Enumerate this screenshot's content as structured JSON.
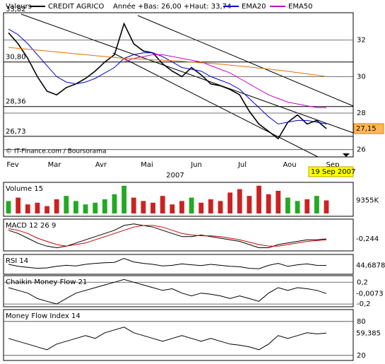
{
  "chart_data": [
    {
      "type": "line",
      "title": "Valeurs",
      "subtitle": "Année +Bas: 26,00 +Haut: 33,74",
      "series": [
        {
          "name": "CREDIT AGRICO",
          "color": "#000000",
          "values": [
            32.4,
            31.8,
            31.0,
            30.0,
            29.2,
            29.0,
            29.4,
            29.6,
            29.9,
            30.3,
            30.8,
            31.2,
            32.9,
            31.8,
            31.4,
            31.3,
            30.7,
            30.3,
            30.0,
            30.5,
            30.1,
            29.6,
            29.5,
            29.3,
            29.0,
            28.1,
            27.4,
            27.0,
            26.6,
            27.5,
            27.9,
            27.4,
            27.6,
            27.15
          ]
        },
        {
          "name": "EMA20",
          "color": "#0000cc",
          "values": [
            32.6,
            32.3,
            31.8,
            31.2,
            30.6,
            30.0,
            29.7,
            29.6,
            29.7,
            29.9,
            30.2,
            30.5,
            31.0,
            31.2,
            31.3,
            31.3,
            31.1,
            30.8,
            30.5,
            30.4,
            30.3,
            30.0,
            29.8,
            29.6,
            29.3,
            28.8,
            28.3,
            27.8,
            27.4,
            27.5,
            27.6,
            27.6,
            27.5,
            27.4
          ]
        },
        {
          "name": "EMA50",
          "color": "#cc00cc",
          "values": [
            null,
            null,
            null,
            null,
            null,
            null,
            null,
            null,
            null,
            null,
            null,
            null,
            30.8,
            31.0,
            31.1,
            31.2,
            31.2,
            31.1,
            31.0,
            30.9,
            30.8,
            30.6,
            30.4,
            30.2,
            29.9,
            29.6,
            29.3,
            29.0,
            28.8,
            28.6,
            28.5,
            28.4,
            28.3,
            28.3
          ]
        },
        {
          "color": "#e07000",
          "values": [
            31.6,
            31.55,
            31.5,
            31.45,
            31.4,
            31.35,
            31.3,
            31.25,
            31.2,
            31.15,
            31.1,
            31.05,
            31.0,
            30.98,
            30.95,
            30.92,
            30.9,
            30.87,
            30.84,
            30.8,
            30.76,
            30.72,
            30.68,
            30.63,
            30.58,
            30.53,
            30.47,
            30.41,
            30.35,
            30.29,
            30.22,
            30.15,
            30.08,
            30.0
          ]
        }
      ],
      "ylim": [
        25.6,
        33.5
      ],
      "yticks": [
        26,
        28,
        30,
        32
      ],
      "levels": [
        {
          "value": 33.82,
          "label": "33,82"
        },
        {
          "value": 30.8,
          "label": "30,80"
        },
        {
          "value": 28.36,
          "label": "28,36"
        },
        {
          "value": 26.73,
          "label": "26,73"
        }
      ],
      "current": {
        "value": 27.15,
        "label": "27,15"
      },
      "months": [
        "Fev",
        "Mar",
        "Avr",
        "Mai",
        "Jun",
        "Jul",
        "Aou",
        "Sep"
      ],
      "year": "2007",
      "date": "19 Sep 2007",
      "source": "© IT-Finance.com / Boursorama"
    },
    {
      "type": "bar",
      "title": "Volume 15",
      "up_color": "#22aa22",
      "down_color": "#cc2222",
      "values": [
        9000,
        11000,
        7000,
        8000,
        6000,
        10000,
        12000,
        9000,
        7000,
        8000,
        10000,
        13000,
        18000,
        11000,
        9000,
        8000,
        12000,
        7000,
        9000,
        11000,
        8000,
        10000,
        9000,
        14000,
        16000,
        12000,
        18000,
        13000,
        15000,
        11000,
        9000,
        10000,
        12000,
        9355
      ],
      "ylim": [
        0,
        20000
      ],
      "current": {
        "value": 9355,
        "label": "9355K"
      }
    },
    {
      "type": "line",
      "title": "MACD 12 26 9",
      "series": [
        {
          "color": "#000000",
          "values": [
            0.3,
            0.1,
            -0.2,
            -0.5,
            -0.7,
            -0.8,
            -0.7,
            -0.5,
            -0.3,
            -0.1,
            0.1,
            0.3,
            0.6,
            0.7,
            0.6,
            0.5,
            0.3,
            0.1,
            -0.1,
            -0.1,
            0.0,
            -0.1,
            -0.2,
            -0.3,
            -0.4,
            -0.6,
            -0.8,
            -0.8,
            -0.6,
            -0.5,
            -0.4,
            -0.3,
            -0.3,
            -0.244
          ]
        },
        {
          "color": "#cc0000",
          "values": [
            0.4,
            0.3,
            0.1,
            -0.2,
            -0.4,
            -0.6,
            -0.7,
            -0.6,
            -0.5,
            -0.3,
            -0.1,
            0.1,
            0.3,
            0.5,
            0.6,
            0.6,
            0.5,
            0.3,
            0.1,
            0.0,
            -0.05,
            -0.05,
            -0.1,
            -0.2,
            -0.3,
            -0.45,
            -0.6,
            -0.7,
            -0.7,
            -0.6,
            -0.5,
            -0.4,
            -0.35,
            -0.3
          ]
        }
      ],
      "ylim": [
        -1.0,
        1.0
      ],
      "current": {
        "value": -0.244,
        "label": "-0,244"
      }
    },
    {
      "type": "line",
      "title": "RSI 14",
      "series": [
        {
          "color": "#000000",
          "values": [
            50,
            40,
            35,
            30,
            32,
            40,
            45,
            42,
            50,
            55,
            58,
            60,
            80,
            62,
            55,
            50,
            42,
            45,
            52,
            48,
            44,
            50,
            45,
            40,
            38,
            30,
            28,
            45,
            55,
            40,
            48,
            52,
            45,
            44.6878
          ]
        }
      ],
      "ylim": [
        0,
        100
      ],
      "current": {
        "value": 44.6878,
        "label": "44,6878"
      }
    },
    {
      "type": "line",
      "title": "Chaikin Money Flow 21",
      "series": [
        {
          "color": "#000000",
          "values": [
            0.1,
            0.05,
            0.0,
            -0.1,
            -0.15,
            -0.2,
            -0.1,
            0.0,
            0.05,
            0.1,
            0.15,
            0.2,
            0.25,
            0.2,
            0.15,
            0.1,
            0.05,
            0.08,
            0.0,
            -0.05,
            0.0,
            -0.02,
            -0.05,
            -0.1,
            -0.05,
            -0.1,
            -0.15,
            0.0,
            0.1,
            0.05,
            0.1,
            0.08,
            0.05,
            -0.0073
          ]
        }
      ],
      "ylim": [
        -0.25,
        0.32
      ],
      "yticks": [
        {
          "value": 0.2,
          "label": "0,2"
        },
        {
          "value": -0.2,
          "label": "-0,2"
        }
      ],
      "current": {
        "value": -0.0073,
        "label": "-0,0073"
      }
    },
    {
      "type": "line",
      "title": "Money Flow Index 14",
      "series": [
        {
          "color": "#000000",
          "values": [
            50,
            45,
            40,
            35,
            30,
            40,
            45,
            50,
            55,
            50,
            60,
            65,
            70,
            60,
            55,
            50,
            45,
            50,
            55,
            50,
            45,
            50,
            45,
            40,
            38,
            35,
            30,
            40,
            55,
            50,
            55,
            60,
            58,
            59.385
          ]
        }
      ],
      "ylim": [
        11,
        101
      ],
      "yticks": [
        80,
        20
      ],
      "current": {
        "value": 59.385,
        "label": "59,385"
      }
    }
  ]
}
